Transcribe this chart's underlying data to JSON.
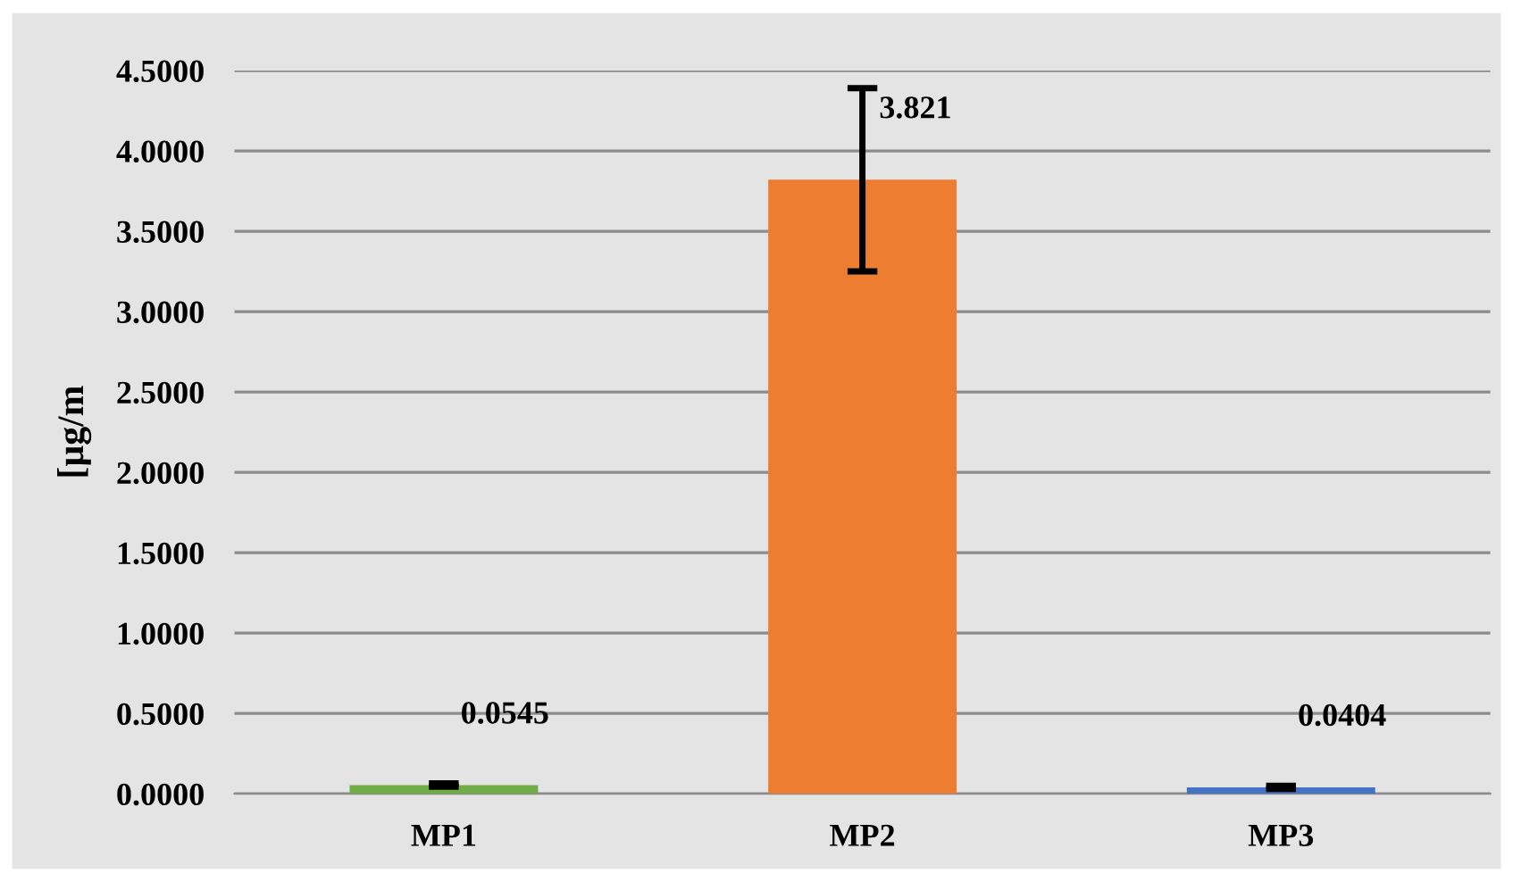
{
  "chart_data": {
    "type": "bar",
    "ylabel": "[µg/m",
    "categories": [
      "MP1",
      "MP2",
      "MP3"
    ],
    "values": [
      0.0545,
      3.821,
      0.0404
    ],
    "colors": [
      "#70ad47",
      "#ed7d31",
      "#4472c4"
    ],
    "errors": [
      0.01,
      0.57,
      0.01
    ],
    "ylim": [
      0,
      4.5
    ],
    "yticks": [
      {
        "value": 0,
        "label": "0.0000"
      },
      {
        "value": 0.5,
        "label": "0.5000"
      },
      {
        "value": 1,
        "label": "1.0000"
      },
      {
        "value": 1.5,
        "label": "1.5000"
      },
      {
        "value": 2,
        "label": "2.0000"
      },
      {
        "value": 2.5,
        "label": "2.5000"
      },
      {
        "value": 3,
        "label": "3.0000"
      },
      {
        "value": 3.5,
        "label": "3.5000"
      },
      {
        "value": 4,
        "label": "4.0000"
      },
      {
        "value": 4.5,
        "label": "4.5000"
      }
    ],
    "grid": "y",
    "data_labels": true
  }
}
